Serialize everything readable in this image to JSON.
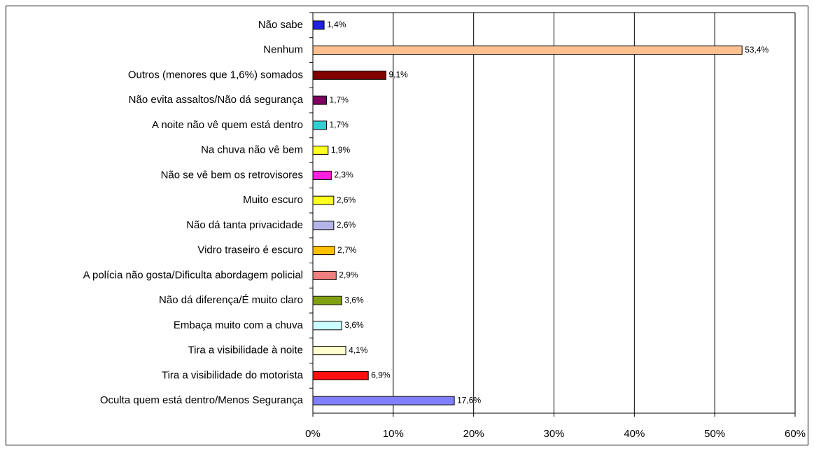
{
  "chart_data": {
    "type": "bar",
    "orientation": "horizontal",
    "categories": [
      "Não sabe",
      "Nenhum",
      "Outros (menores que 1,6%) somados",
      "Não evita assaltos/Não dá segurança",
      "A noite não vê quem está dentro",
      "Na chuva não vê bem",
      "Não se vê bem os retrovisores",
      "Muito escuro",
      "Não dá tanta privacidade",
      "Vidro traseiro é escuro",
      "A polícia não gosta/Dificulta abordagem policial",
      "Não dá diferença/É muito claro",
      "Embaça muito com a chuva",
      "Tira a visibilidade à noite",
      "Tira a visibilidade do motorista",
      "Oculta quem está dentro/Menos Segurança"
    ],
    "values": [
      1.4,
      53.4,
      9.1,
      1.7,
      1.7,
      1.9,
      2.3,
      2.6,
      2.6,
      2.7,
      2.9,
      3.6,
      3.6,
      4.1,
      6.9,
      17.6
    ],
    "value_labels": [
      "1,4%",
      "53,4%",
      "9,1%",
      "1,7%",
      "1,7%",
      "1,9%",
      "2,3%",
      "2,6%",
      "2,6%",
      "2,7%",
      "2,9%",
      "3,6%",
      "3,6%",
      "4,1%",
      "6,9%",
      "17,6%"
    ],
    "colors": [
      "#2020e0",
      "#ffc090",
      "#800000",
      "#800060",
      "#30d0d0",
      "#ffff20",
      "#ff20e0",
      "#ffff20",
      "#b4b4e8",
      "#ffc000",
      "#f08080",
      "#80a010",
      "#ccffff",
      "#ffffd0",
      "#ff1010",
      "#8080ff"
    ],
    "xlim": [
      0,
      60
    ],
    "xticks": [
      {
        "value": 0,
        "label": "0%"
      },
      {
        "value": 10,
        "label": "10%"
      },
      {
        "value": 20,
        "label": "20%"
      },
      {
        "value": 30,
        "label": "30%"
      },
      {
        "value": 40,
        "label": "40%"
      },
      {
        "value": 50,
        "label": "50%"
      },
      {
        "value": 60,
        "label": "60%"
      }
    ],
    "grid": true
  }
}
